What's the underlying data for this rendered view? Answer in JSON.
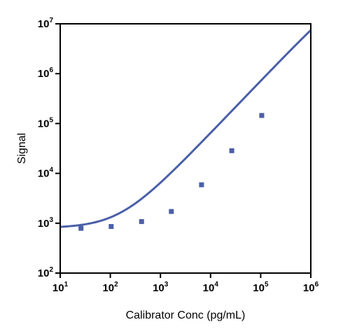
{
  "chart_data": {
    "type": "scatter",
    "title": "",
    "xlabel": "Calibrator Conc (pg/mL)",
    "ylabel": "Signal",
    "x_scale": "log",
    "y_scale": "log",
    "xlim": [
      10,
      1000000
    ],
    "ylim": [
      100,
      10000000
    ],
    "grid": false,
    "legend": "none",
    "x_ticks": [
      {
        "base": "10",
        "exp": "1",
        "value": 10
      },
      {
        "base": "10",
        "exp": "2",
        "value": 100
      },
      {
        "base": "10",
        "exp": "3",
        "value": 1000
      },
      {
        "base": "10",
        "exp": "4",
        "value": 10000
      },
      {
        "base": "10",
        "exp": "5",
        "value": 100000
      },
      {
        "base": "10",
        "exp": "6",
        "value": 1000000
      }
    ],
    "y_ticks": [
      {
        "base": "10",
        "exp": "2",
        "value": 100
      },
      {
        "base": "10",
        "exp": "3",
        "value": 1000
      },
      {
        "base": "10",
        "exp": "4",
        "value": 10000
      },
      {
        "base": "10",
        "exp": "5",
        "value": 100000
      },
      {
        "base": "10",
        "exp": "6",
        "value": 1000000
      },
      {
        "base": "10",
        "exp": "7",
        "value": 10000000
      }
    ],
    "series": [
      {
        "name": "",
        "color": "#4a5fa8",
        "marker": "square",
        "points": [
          {
            "x": 26,
            "y": 790
          },
          {
            "x": 104,
            "y": 860
          },
          {
            "x": 420,
            "y": 1080
          },
          {
            "x": 1650,
            "y": 1720
          },
          {
            "x": 6600,
            "y": 5900
          },
          {
            "x": 26500,
            "y": 28500
          },
          {
            "x": 105000,
            "y": 145000
          }
        ],
        "fit": {
          "model": "4PL",
          "bottom": 800,
          "top": 100000000,
          "ec50": 11000000,
          "hill": 1.05,
          "x_range": [
            10,
            1000000
          ]
        }
      }
    ]
  }
}
